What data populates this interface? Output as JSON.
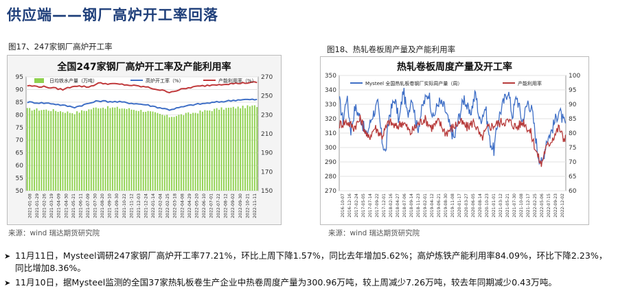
{
  "header": {
    "title": "供应端——钢厂高炉开工率回落"
  },
  "figures": [
    {
      "caption": "图17、247家钢厂高炉开工率",
      "source": "来源：wind   瑞达期货研究院"
    },
    {
      "caption": "图18、热轧卷板周产量及产能利用率",
      "source": "来源：wind   瑞达期货研究院"
    }
  ],
  "bullets": [
    "11月11日，Mysteel调研247家钢厂高炉开工率77.21%，环比上周下降1.57%，同比去年增加5.62%；高炉炼铁产能利用率84.09%，环比下降2.23%，同比增加8.36%。",
    "11月10日，据Mysteel监测的全国37家热轧板卷生产企业中热卷周度产量为300.96万吨，较上周减少7.26万吨，较去年同期减少0.43万吨。"
  ],
  "watermark": "",
  "page_number": "",
  "chart_data": [
    {
      "type": "bar",
      "title": "全国247家钢厂高炉开工率及产能利用率",
      "series": [
        {
          "name": "日均铁水产量（万吨）",
          "axis": "right",
          "style": "bar",
          "color": "#8fd14f",
          "anchors": [
            [
              0,
              236
            ],
            [
              10,
              235
            ],
            [
              20,
              232
            ],
            [
              30,
              238
            ],
            [
              40,
              237
            ],
            [
              50,
              234
            ],
            [
              60,
              228
            ],
            [
              70,
              232
            ],
            [
              80,
              236
            ],
            [
              90,
              238
            ],
            [
              100,
              240
            ],
            [
              110,
              241
            ],
            [
              120,
              240
            ],
            [
              128,
              236
            ],
            [
              132,
              225
            ],
            [
              136,
              238
            ],
            [
              142,
              232
            ],
            [
              148,
              228
            ],
            [
              155,
              226
            ],
            [
              165,
              222
            ],
            [
              175,
              215
            ],
            [
              185,
              208
            ],
            [
              195,
              205
            ],
            [
              205,
              203
            ],
            [
              215,
              210
            ],
            [
              225,
              215
            ],
            [
              235,
              220
            ],
            [
              245,
              222
            ],
            [
              255,
              225
            ],
            [
              265,
              232
            ],
            [
              275,
              235
            ],
            [
              285,
              236
            ],
            [
              295,
              230
            ],
            [
              305,
              222
            ],
            [
              315,
              218
            ],
            [
              325,
              228
            ],
            [
              335,
              234
            ],
            [
              345,
              236
            ],
            [
              352,
              230
            ],
            [
              357,
              224
            ]
          ]
        },
        {
          "name": "高炉开工率（%）",
          "axis": "left",
          "style": "line",
          "color": "#3f6fc6",
          "anchors": [
            [
              0,
              85
            ],
            [
              10,
              84.5
            ],
            [
              20,
              83
            ],
            [
              30,
              85.5
            ],
            [
              40,
              85
            ],
            [
              50,
              84
            ],
            [
              60,
              82
            ],
            [
              70,
              84
            ],
            [
              80,
              85
            ],
            [
              90,
              86
            ],
            [
              100,
              86
            ],
            [
              110,
              86
            ],
            [
              120,
              85.5
            ],
            [
              128,
              84
            ],
            [
              131,
              68
            ],
            [
              134,
              83
            ],
            [
              140,
              80
            ],
            [
              147,
              80
            ],
            [
              152,
              79
            ],
            [
              160,
              78
            ],
            [
              170,
              76
            ],
            [
              180,
              74
            ],
            [
              190,
              71
            ],
            [
              198,
              70
            ],
            [
              206,
              70
            ],
            [
              214,
              73
            ],
            [
              222,
              75
            ],
            [
              226,
              72
            ],
            [
              232,
              75
            ],
            [
              240,
              77
            ],
            [
              250,
              80
            ],
            [
              260,
              84
            ],
            [
              270,
              85
            ],
            [
              280,
              86
            ],
            [
              290,
              84
            ],
            [
              298,
              80
            ],
            [
              305,
              76
            ],
            [
              312,
              74
            ],
            [
              320,
              78
            ],
            [
              330,
              82
            ],
            [
              340,
              84
            ],
            [
              348,
              83
            ],
            [
              354,
              80
            ],
            [
              358,
              78
            ]
          ]
        },
        {
          "name": "产能利用率（%）",
          "axis": "left",
          "style": "line",
          "color": "#c0393b",
          "anchors": [
            [
              0,
              91.5
            ],
            [
              8,
              91
            ],
            [
              15,
              90
            ],
            [
              20,
              91.5
            ],
            [
              26,
              91
            ],
            [
              30,
              92.5
            ],
            [
              40,
              92
            ],
            [
              50,
              91
            ],
            [
              60,
              89
            ],
            [
              70,
              91
            ],
            [
              80,
              92
            ],
            [
              90,
              92.5
            ],
            [
              100,
              93
            ],
            [
              110,
              93
            ],
            [
              120,
              92.5
            ],
            [
              128,
              91
            ],
            [
              132,
              81
            ],
            [
              136,
              90
            ],
            [
              142,
              87
            ],
            [
              150,
              86
            ],
            [
              160,
              85
            ],
            [
              170,
              82
            ],
            [
              178,
              80
            ],
            [
              188,
              77
            ],
            [
              198,
              75
            ],
            [
              206,
              75
            ],
            [
              214,
              78
            ],
            [
              222,
              80
            ],
            [
              226,
              77
            ],
            [
              232,
              80
            ],
            [
              240,
              84
            ],
            [
              250,
              88
            ],
            [
              260,
              89
            ],
            [
              270,
              91
            ],
            [
              280,
              92
            ],
            [
              290,
              89
            ],
            [
              298,
              85
            ],
            [
              305,
              82
            ],
            [
              312,
              80
            ],
            [
              320,
              84
            ],
            [
              330,
              88
            ],
            [
              340,
              89
            ],
            [
              348,
              88.5
            ],
            [
              354,
              86
            ],
            [
              358,
              84.5
            ]
          ]
        }
      ],
      "x_tick_labels": [
        "2021-01-08",
        "2021-01-29",
        "2021-02-26",
        "2021-03-19",
        "2021-04-09",
        "2021-04-30",
        "2021-05-21",
        "2021-06-11",
        "2021-07-09",
        "2021-07-30",
        "2021-08-20",
        "2021-09-10",
        "2021-09-30",
        "2021-10-22",
        "2021-11-12",
        "2021-12-03",
        "2021-12-24",
        "2022-01-14",
        "2022-02-04",
        "2022-02-25",
        "2022-03-18",
        "2022-04-08",
        "2022-04-29",
        "2022-05-20",
        "2022-06-10",
        "2022-07-01",
        "2022-07-22",
        "2022-08-12",
        "2022-09-02",
        "2022-09-30",
        "2022-10-21",
        "2022-11-11"
      ],
      "y_left": {
        "ylim": [
          50,
          95
        ],
        "ticks": [
          50,
          55,
          60,
          65,
          70,
          75,
          80,
          85,
          90,
          95
        ]
      },
      "y_right": {
        "ylim": [
          150,
          270
        ],
        "ticks": [
          150,
          170,
          190,
          210,
          230,
          250,
          270
        ]
      },
      "legend": "top",
      "grid": true
    },
    {
      "type": "line",
      "title": "热轧卷板周度产量及开工率",
      "series": [
        {
          "name": "Mysteel 全国热轧板卷钢厂实际周产量（周）",
          "axis": "left",
          "color": "#3f6fc6",
          "anchors": [
            [
              0,
              332
            ],
            [
              5,
              318
            ],
            [
              10,
              336
            ],
            [
              16,
              312
            ],
            [
              22,
              328
            ],
            [
              30,
              320
            ],
            [
              38,
              308
            ],
            [
              46,
              322
            ],
            [
              54,
              330
            ],
            [
              60,
              305
            ],
            [
              65,
              296
            ],
            [
              70,
              322
            ],
            [
              78,
              334
            ],
            [
              84,
              318
            ],
            [
              90,
              340
            ],
            [
              96,
              322
            ],
            [
              102,
              336
            ],
            [
              110,
              312
            ],
            [
              118,
              330
            ],
            [
              126,
              338
            ],
            [
              132,
              320
            ],
            [
              140,
              332
            ],
            [
              148,
              328
            ],
            [
              156,
              314
            ],
            [
              162,
              306
            ],
            [
              168,
              320
            ],
            [
              176,
              335
            ],
            [
              184,
              322
            ],
            [
              192,
              338
            ],
            [
              198,
              318
            ],
            [
              206,
              328
            ],
            [
              212,
              305
            ],
            [
              218,
              298
            ],
            [
              224,
              320
            ],
            [
              232,
              332
            ],
            [
              238,
              340
            ],
            [
              244,
              322
            ],
            [
              250,
              336
            ],
            [
              258,
              318
            ],
            [
              266,
              332
            ],
            [
              272,
              325
            ],
            [
              280,
              296
            ],
            [
              286,
              288
            ],
            [
              292,
              305
            ],
            [
              298,
              310
            ],
            [
              304,
              318
            ],
            [
              310,
              326
            ],
            [
              316,
              318
            ],
            [
              322,
              312
            ],
            [
              328,
              302
            ],
            [
              334,
              318
            ],
            [
              338,
              306
            ]
          ]
        },
        {
          "name": "产能利用率",
          "axis": "right",
          "color": "#b73a3a",
          "anchors": [
            [
              0,
              83
            ],
            [
              10,
              84
            ],
            [
              20,
              82
            ],
            [
              30,
              85
            ],
            [
              40,
              78
            ],
            [
              50,
              82
            ],
            [
              60,
              79
            ],
            [
              70,
              84
            ],
            [
              80,
              82
            ],
            [
              90,
              84
            ],
            [
              100,
              80
            ],
            [
              110,
              83
            ],
            [
              120,
              85
            ],
            [
              130,
              82
            ],
            [
              140,
              84
            ],
            [
              150,
              80
            ],
            [
              160,
              82
            ],
            [
              170,
              84
            ],
            [
              180,
              82
            ],
            [
              190,
              84
            ],
            [
              200,
              78
            ],
            [
              210,
              82
            ],
            [
              220,
              83
            ],
            [
              230,
              84
            ],
            [
              240,
              84
            ],
            [
              250,
              82
            ],
            [
              260,
              84
            ],
            [
              270,
              80
            ],
            [
              280,
              72
            ],
            [
              285,
              69
            ],
            [
              290,
              74
            ],
            [
              300,
              78
            ],
            [
              310,
              82
            ],
            [
              316,
              78
            ],
            [
              322,
              80
            ],
            [
              328,
              74
            ],
            [
              334,
              80
            ],
            [
              338,
              76
            ]
          ]
        }
      ],
      "x_tick_labels": [
        "2016-10-07",
        "2016-12-16",
        "2017-02-24",
        "2017-05-05",
        "2017-07-14",
        "2017-09-22",
        "2017-12-01",
        "2018-02-16",
        "2018-04-27",
        "2018-07-06",
        "2018-09-14",
        "2018-11-23",
        "2019-02-01",
        "2019-04-12",
        "2019-06-21",
        "2019-08-30",
        "2019-11-08",
        "2020-01-17",
        "2020-03-27",
        "2020-06-05",
        "2020-08-14",
        "2020-10-23",
        "2021-01-01",
        "2021-03-12",
        "2021-05-21",
        "2021-07-30",
        "2021-10-08",
        "2021-12-17",
        "2022-02-25",
        "2022-05-06",
        "2022-07-15",
        "2022-09-23",
        "2022-12-02"
      ],
      "y_left": {
        "ylim": [
          270,
          350
        ],
        "ticks": [
          270,
          280,
          290,
          300,
          310,
          320,
          330,
          340,
          350
        ]
      },
      "y_right": {
        "ylim": [
          60,
          100
        ],
        "ticks": [
          60,
          65,
          70,
          75,
          80,
          85,
          90,
          95,
          100
        ]
      },
      "legend": "top",
      "grid": true
    }
  ]
}
